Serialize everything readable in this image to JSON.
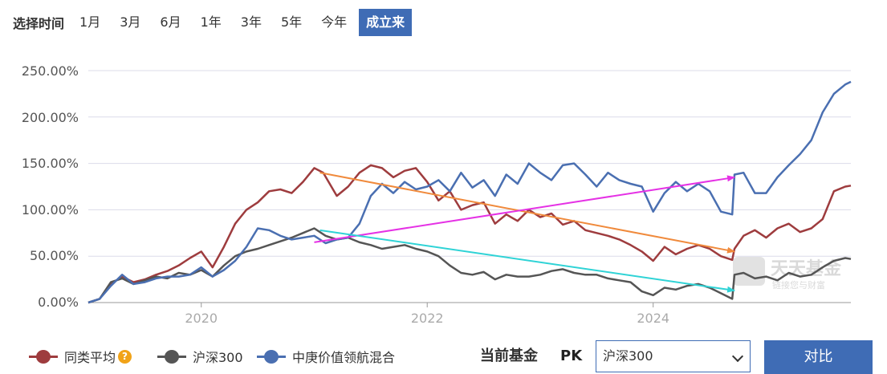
{
  "toolbar": {
    "label": "选择时间",
    "ranges": [
      "1月",
      "3月",
      "6月",
      "1年",
      "3年",
      "5年",
      "今年",
      "成立来"
    ],
    "active_index": 7
  },
  "watermark": {
    "logo_text": "天天基金",
    "tagline": "链接您与财富"
  },
  "legend": {
    "items": [
      {
        "label": "同类平均",
        "color": "#9e3c3e"
      },
      {
        "label": "沪深300",
        "color": "#555555"
      },
      {
        "label": "中庚价值领航混合",
        "color": "#4a6fb1"
      }
    ],
    "help_icon": "question-icon"
  },
  "compare": {
    "label": "当前基金",
    "pk": "PK",
    "selected": "沪深300",
    "button": "对比"
  },
  "chart_data": {
    "type": "line",
    "yticks": [
      "0.00%",
      "50.00%",
      "100.00%",
      "150.00%",
      "200.00%",
      "250.00%"
    ],
    "ylim": [
      0,
      250
    ],
    "xlim": [
      2019.0,
      2025.75
    ],
    "xticks": [
      2020,
      2022,
      2024
    ],
    "grid": "horizontal",
    "series": [
      {
        "name": "同类平均",
        "color": "#9e3c3e",
        "x": [
          2019.0,
          2019.1,
          2019.2,
          2019.3,
          2019.4,
          2019.5,
          2019.6,
          2019.7,
          2019.8,
          2019.9,
          2020.0,
          2020.1,
          2020.2,
          2020.3,
          2020.4,
          2020.5,
          2020.6,
          2020.7,
          2020.8,
          2020.9,
          2021.0,
          2021.08,
          2021.2,
          2021.3,
          2021.4,
          2021.5,
          2021.6,
          2021.7,
          2021.8,
          2021.9,
          2022.0,
          2022.1,
          2022.2,
          2022.3,
          2022.4,
          2022.5,
          2022.6,
          2022.7,
          2022.8,
          2022.9,
          2023.0,
          2023.1,
          2023.2,
          2023.3,
          2023.4,
          2023.5,
          2023.6,
          2023.7,
          2023.8,
          2023.9,
          2024.0,
          2024.1,
          2024.2,
          2024.3,
          2024.4,
          2024.5,
          2024.6,
          2024.7,
          2024.72,
          2024.8,
          2024.9,
          2025.0,
          2025.1,
          2025.2,
          2025.3,
          2025.4,
          2025.5,
          2025.6,
          2025.7,
          2025.75
        ],
        "y": [
          0,
          4,
          20,
          28,
          22,
          25,
          30,
          34,
          40,
          48,
          55,
          38,
          60,
          85,
          100,
          108,
          120,
          122,
          118,
          130,
          145,
          140,
          115,
          125,
          140,
          148,
          145,
          135,
          142,
          145,
          130,
          110,
          120,
          100,
          105,
          108,
          85,
          95,
          88,
          100,
          92,
          96,
          84,
          88,
          78,
          75,
          72,
          68,
          62,
          55,
          45,
          60,
          52,
          58,
          62,
          58,
          50,
          46,
          58,
          72,
          78,
          70,
          80,
          85,
          76,
          80,
          90,
          120,
          125,
          126
        ]
      },
      {
        "name": "沪深300",
        "color": "#555555",
        "x": [
          2019.0,
          2019.1,
          2019.2,
          2019.3,
          2019.4,
          2019.5,
          2019.6,
          2019.7,
          2019.8,
          2019.9,
          2020.0,
          2020.1,
          2020.2,
          2020.3,
          2020.4,
          2020.5,
          2020.6,
          2020.7,
          2020.8,
          2020.9,
          2021.0,
          2021.1,
          2021.2,
          2021.3,
          2021.4,
          2021.5,
          2021.6,
          2021.7,
          2021.8,
          2021.9,
          2022.0,
          2022.1,
          2022.2,
          2022.3,
          2022.4,
          2022.5,
          2022.6,
          2022.7,
          2022.8,
          2022.9,
          2023.0,
          2023.1,
          2023.2,
          2023.3,
          2023.4,
          2023.5,
          2023.6,
          2023.7,
          2023.8,
          2023.9,
          2024.0,
          2024.1,
          2024.2,
          2024.3,
          2024.4,
          2024.5,
          2024.6,
          2024.7,
          2024.72,
          2024.8,
          2024.9,
          2025.0,
          2025.1,
          2025.2,
          2025.3,
          2025.4,
          2025.5,
          2025.6,
          2025.7,
          2025.75
        ],
        "y": [
          0,
          4,
          22,
          26,
          20,
          24,
          28,
          26,
          32,
          30,
          35,
          28,
          40,
          50,
          55,
          58,
          62,
          66,
          70,
          75,
          80,
          72,
          68,
          70,
          65,
          62,
          58,
          60,
          62,
          58,
          55,
          50,
          40,
          32,
          30,
          33,
          25,
          30,
          28,
          28,
          30,
          34,
          36,
          32,
          30,
          30,
          26,
          24,
          22,
          12,
          8,
          16,
          14,
          18,
          20,
          16,
          10,
          4,
          30,
          32,
          26,
          28,
          24,
          32,
          28,
          30,
          38,
          45,
          48,
          47
        ]
      },
      {
        "name": "中庚价值领航混合",
        "color": "#4a6fb1",
        "x": [
          2019.0,
          2019.1,
          2019.2,
          2019.3,
          2019.4,
          2019.5,
          2019.6,
          2019.7,
          2019.8,
          2019.9,
          2020.0,
          2020.1,
          2020.2,
          2020.3,
          2020.4,
          2020.5,
          2020.6,
          2020.7,
          2020.8,
          2020.9,
          2021.0,
          2021.1,
          2021.2,
          2021.3,
          2021.4,
          2021.5,
          2021.6,
          2021.7,
          2021.8,
          2021.9,
          2022.0,
          2022.1,
          2022.2,
          2022.3,
          2022.4,
          2022.5,
          2022.6,
          2022.7,
          2022.8,
          2022.9,
          2023.0,
          2023.1,
          2023.2,
          2023.3,
          2023.4,
          2023.5,
          2023.6,
          2023.7,
          2023.8,
          2023.9,
          2024.0,
          2024.1,
          2024.2,
          2024.3,
          2024.4,
          2024.5,
          2024.6,
          2024.7,
          2024.72,
          2024.8,
          2024.9,
          2025.0,
          2025.1,
          2025.2,
          2025.3,
          2025.4,
          2025.5,
          2025.6,
          2025.7,
          2025.75
        ],
        "y": [
          0,
          4,
          18,
          30,
          20,
          22,
          26,
          28,
          28,
          30,
          38,
          28,
          35,
          45,
          60,
          80,
          78,
          72,
          68,
          70,
          72,
          64,
          68,
          70,
          85,
          115,
          128,
          118,
          130,
          122,
          125,
          132,
          120,
          140,
          124,
          132,
          115,
          138,
          128,
          150,
          140,
          132,
          148,
          150,
          138,
          125,
          140,
          132,
          128,
          125,
          98,
          118,
          130,
          120,
          128,
          120,
          98,
          95,
          138,
          140,
          118,
          118,
          135,
          148,
          160,
          175,
          205,
          225,
          235,
          238
        ]
      }
    ],
    "annotations": [
      {
        "type": "arrow",
        "color": "#f08a3c",
        "from": [
          2021.05,
          140
        ],
        "to": [
          2024.72,
          55
        ]
      },
      {
        "type": "arrow",
        "color": "#e532e5",
        "from": [
          2021.0,
          65
        ],
        "to": [
          2024.72,
          135
        ]
      },
      {
        "type": "arrow",
        "color": "#2fd3d6",
        "from": [
          2021.05,
          78
        ],
        "to": [
          2024.72,
          13
        ]
      }
    ]
  }
}
